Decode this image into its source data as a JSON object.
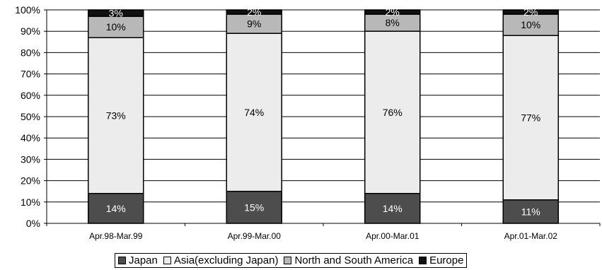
{
  "chart_data": {
    "type": "bar",
    "stacked": true,
    "percent": true,
    "categories": [
      "Apr.98-Mar.99",
      "Apr.99-Mar.00",
      "Apr.00-Mar.01",
      "Apr.01-Mar.02"
    ],
    "series": [
      {
        "name": "Japan",
        "values": [
          14,
          15,
          14,
          11
        ],
        "labels": [
          "14%",
          "15%",
          "14%",
          "11%"
        ],
        "color": "#4d4d4d",
        "label_color": "#ffffff"
      },
      {
        "name": "Asia(excluding Japan)",
        "values": [
          73,
          74,
          76,
          77
        ],
        "labels": [
          "73%",
          "74%",
          "76%",
          "77%"
        ],
        "color": "#ececec",
        "label_color": "#000000"
      },
      {
        "name": "North and South America",
        "values": [
          10,
          9,
          8,
          10
        ],
        "labels": [
          "10%",
          "9%",
          "8%",
          "10%"
        ],
        "color": "#b8b8b8",
        "label_color": "#000000"
      },
      {
        "name": "Europe",
        "values": [
          3,
          2,
          2,
          2
        ],
        "labels": [
          "3%",
          "2%",
          "2%",
          "2%"
        ],
        "color": "#111111",
        "label_color": "#ffffff"
      }
    ],
    "y_ticks": [
      "0%",
      "10%",
      "20%",
      "30%",
      "40%",
      "50%",
      "60%",
      "70%",
      "80%",
      "90%",
      "100%"
    ],
    "ylim": [
      0,
      100
    ],
    "title": "",
    "xlabel": "",
    "ylabel": "",
    "grid": true,
    "legend_position": "bottom"
  }
}
